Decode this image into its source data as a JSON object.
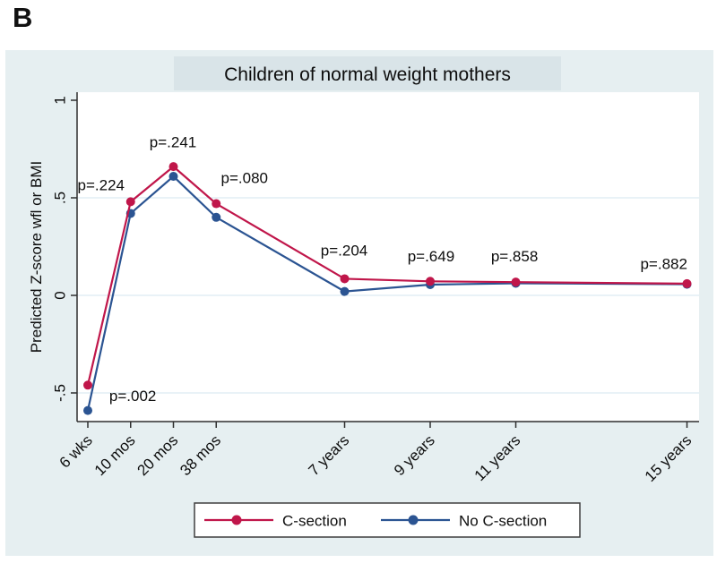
{
  "panel_label": "B",
  "chart_data": {
    "type": "line",
    "title": "Children of normal weight mothers",
    "xlabel": "",
    "ylabel": "Predicted Z-score wfl or BMI",
    "categories": [
      "6 wks",
      "10 mos",
      "20 mos",
      "38 mos",
      "7 years",
      "9 years",
      "11 years",
      "15 years"
    ],
    "x_units": [
      1,
      2,
      3,
      4,
      7,
      9,
      11,
      15
    ],
    "ylim": [
      -0.65,
      1.04
    ],
    "yticks": [
      {
        "value": 1,
        "label": "1"
      },
      {
        "value": 0.5,
        "label": ".5"
      },
      {
        "value": 0,
        "label": "0"
      },
      {
        "value": -0.5,
        "label": "-.5"
      }
    ],
    "grid_values": [
      0.5,
      0,
      -0.5
    ],
    "grid": true,
    "legend_position": "bottom",
    "series": [
      {
        "name": "C-section",
        "color": "#c0164a",
        "values": [
          -0.46,
          0.48,
          0.66,
          0.47,
          0.085,
          0.072,
          0.068,
          0.06
        ]
      },
      {
        "name": "No C-section",
        "color": "#2b5492",
        "values": [
          -0.59,
          0.42,
          0.61,
          0.4,
          0.02,
          0.055,
          0.062,
          0.057
        ]
      }
    ],
    "annotations": [
      {
        "text": "p=.224",
        "x": 1.31,
        "y": 0.565
      },
      {
        "text": "p=.241",
        "x": 2.99,
        "y": 0.785
      },
      {
        "text": "p=.080",
        "x": 4.66,
        "y": 0.6
      },
      {
        "text": "p=.204",
        "x": 6.99,
        "y": 0.23
      },
      {
        "text": "p=.649",
        "x": 9.02,
        "y": 0.2
      },
      {
        "text": "p=.858",
        "x": 10.97,
        "y": 0.2
      },
      {
        "text": "p=.882",
        "x": 14.46,
        "y": 0.16
      },
      {
        "text": "p=.002",
        "x": 2.05,
        "y": -0.515
      }
    ],
    "colors": {
      "figure_bg": "#e6eff1",
      "title_band": "#d9e4e8",
      "plot_bg": "#ffffff",
      "grid": "#dce9f2",
      "axis": "#2f2f2f",
      "text": "#0d0d0d",
      "legend_bg": "#ffffff",
      "legend_border": "#3f3f3f"
    }
  }
}
